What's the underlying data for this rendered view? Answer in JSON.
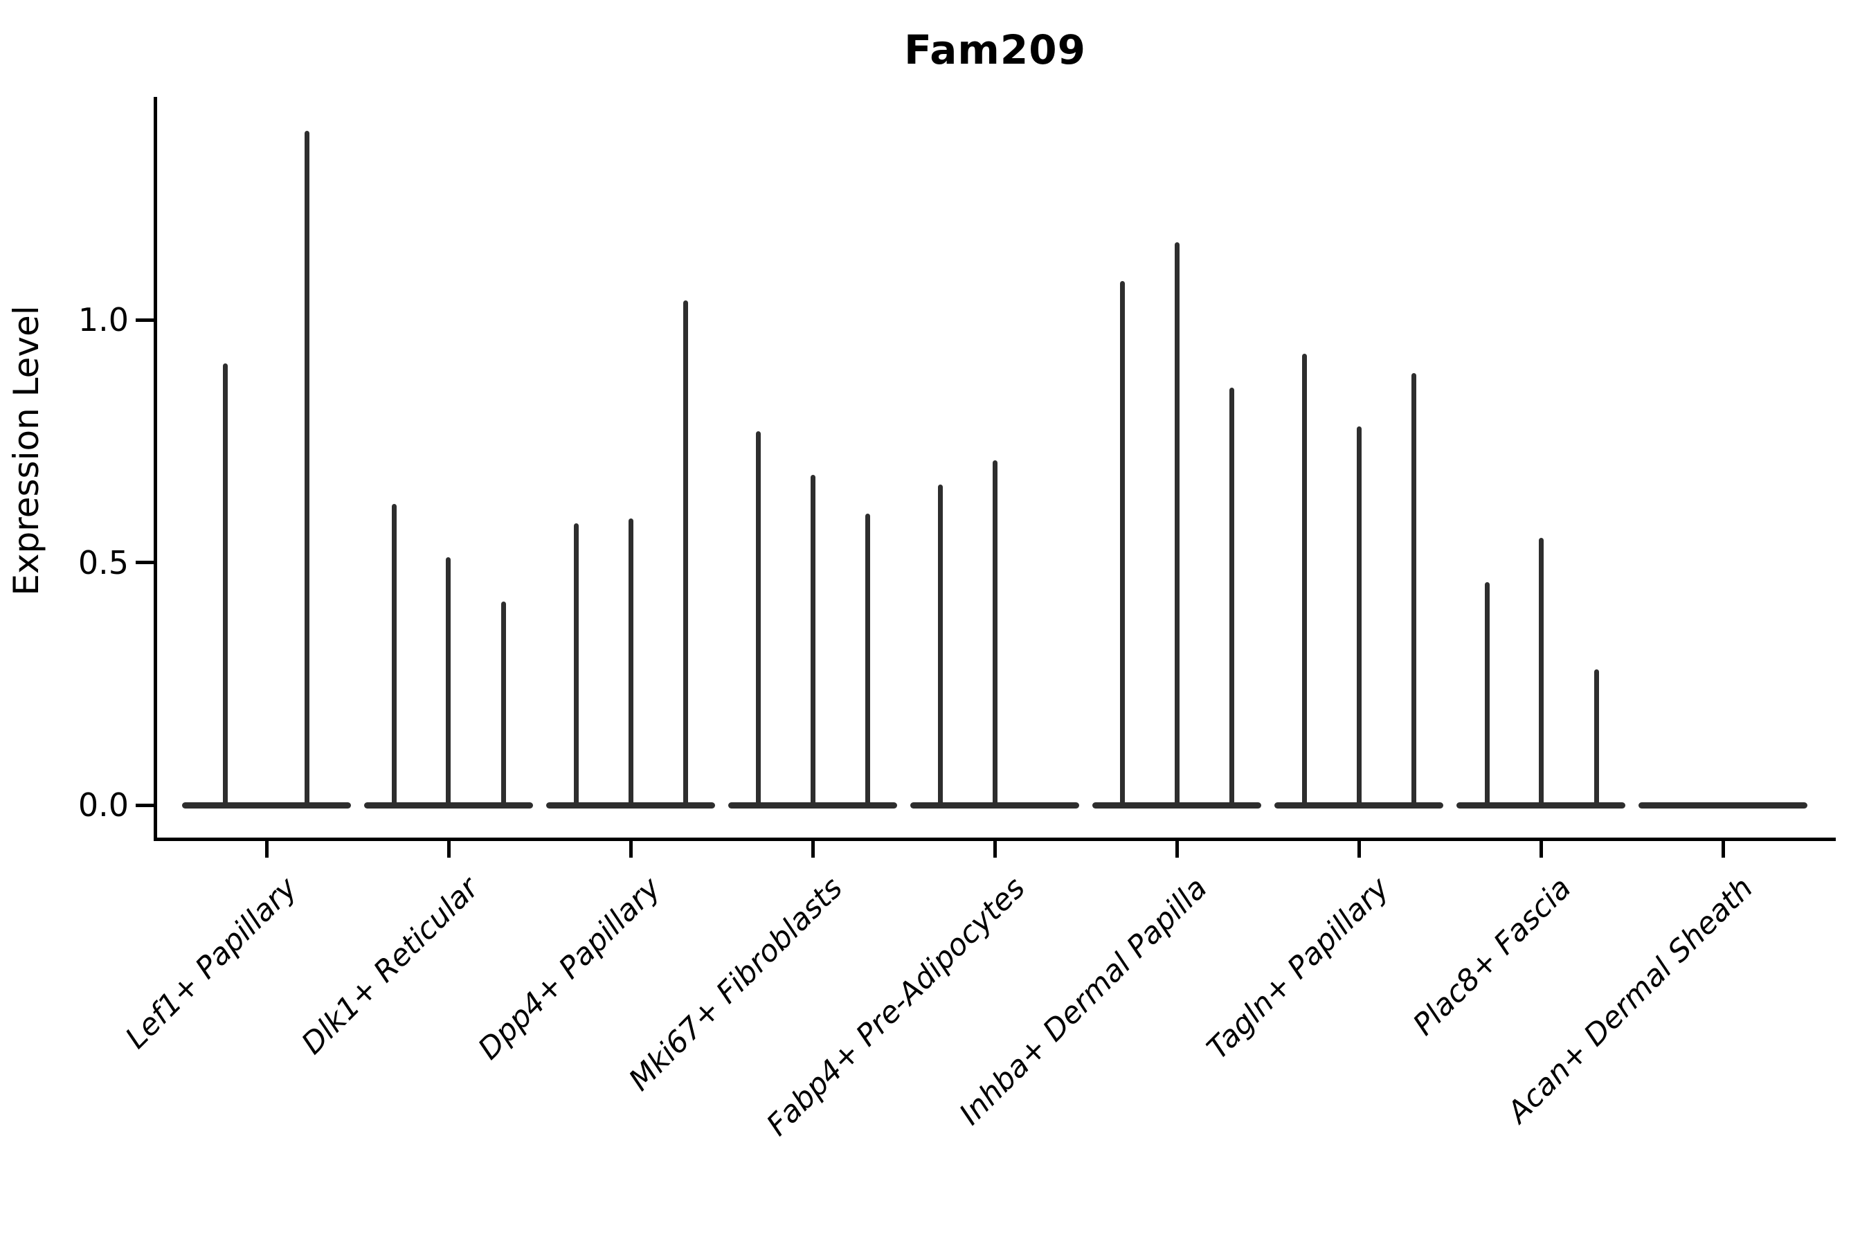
{
  "chart_data": {
    "type": "violin",
    "title": "Fam209",
    "ylabel": "Expression Level",
    "xlabel": "",
    "grid": false,
    "legend_position": "none",
    "ytick_labels": [
      "0.0",
      "0.5",
      "1.0"
    ],
    "ytick_values": [
      0.0,
      0.5,
      1.0
    ],
    "ylim": [
      -0.07,
      1.46
    ],
    "categories": [
      "Lef1+ Papillary",
      "Dlk1+ Reticular",
      "Dpp4+ Papillary",
      "Mki67+ Fibroblasts",
      "Fabp4+ Pre-Adipocytes",
      "Inhba+ Dermal Papilla",
      "Tagln+ Papillary",
      "Plac8+ Fascia",
      "Acan+ Dermal Sheath"
    ],
    "groups": [
      {
        "label": "Lef1+ Papillary",
        "violins": [
          {
            "dx": -60,
            "max": 0.91
          },
          {
            "dx": 58,
            "max": 1.39
          }
        ]
      },
      {
        "label": "Dlk1+ Reticular",
        "violins": [
          {
            "dx": -79,
            "max": 0.62
          },
          {
            "dx": -1,
            "max": 0.51
          },
          {
            "dx": 79,
            "max": 0.42
          }
        ]
      },
      {
        "label": "Dpp4+ Papillary",
        "violins": [
          {
            "dx": -79,
            "max": 0.58
          },
          {
            "dx": 0,
            "max": 0.59
          },
          {
            "dx": 79,
            "max": 1.04
          }
        ]
      },
      {
        "label": "Mki67+ Fibroblasts",
        "violins": [
          {
            "dx": -79,
            "max": 0.77
          },
          {
            "dx": 0,
            "max": 0.68
          },
          {
            "dx": 79,
            "max": 0.6
          }
        ]
      },
      {
        "label": "Fabp4+ Pre-Adipocytes",
        "violins": [
          {
            "dx": -79,
            "max": 0.66
          },
          {
            "dx": 0,
            "max": 0.71
          }
        ]
      },
      {
        "label": "Inhba+ Dermal Papilla",
        "violins": [
          {
            "dx": -79,
            "max": 1.08
          },
          {
            "dx": 0,
            "max": 1.16
          },
          {
            "dx": 79,
            "max": 0.86
          }
        ]
      },
      {
        "label": "Tagln+ Papillary",
        "violins": [
          {
            "dx": -79,
            "max": 0.93
          },
          {
            "dx": 0,
            "max": 0.78
          },
          {
            "dx": 79,
            "max": 0.89
          }
        ]
      },
      {
        "label": "Plac8+ Fascia",
        "violins": [
          {
            "dx": -78,
            "max": 0.46
          },
          {
            "dx": 0,
            "max": 0.55
          },
          {
            "dx": 80,
            "max": 0.28
          }
        ]
      },
      {
        "label": "Acan+ Dermal Sheath",
        "violins": []
      }
    ],
    "colors": {
      "violin": "#2e2e2e",
      "axis": "#000000",
      "text": "#000000",
      "background": "#ffffff"
    }
  }
}
